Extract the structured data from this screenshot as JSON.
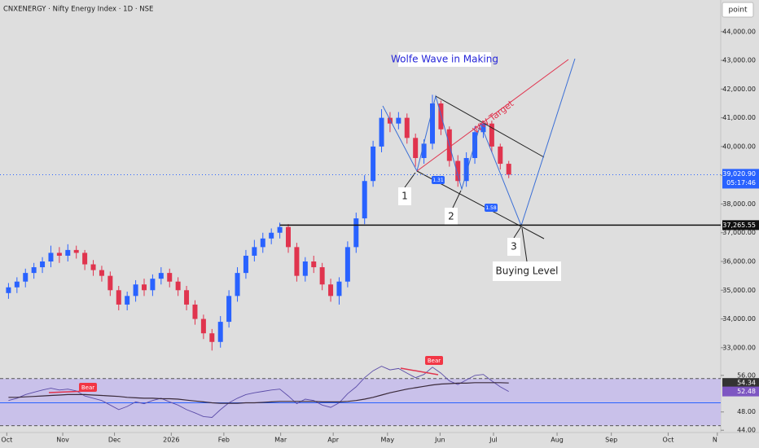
{
  "chart_data": {
    "type": "candlestick",
    "title": "CNXENERGY · Nifty Energy Index · 1D · NSE",
    "unit_label": "point",
    "up_color": "#2962ff",
    "down_color": "#e0344e",
    "open": [
      34900,
      35100,
      35300,
      35600,
      35800,
      36000,
      36300,
      36200,
      36400,
      36300,
      35900,
      35700,
      35500,
      35000,
      34500,
      34800,
      35200,
      35000,
      35400,
      35600,
      35300,
      35000,
      34500,
      34000,
      33500,
      33200,
      33900,
      34800,
      35600,
      36200,
      36500,
      36800,
      37000,
      37200,
      36500,
      35500,
      36000,
      35800,
      35200,
      34800,
      35300,
      36500,
      37500,
      38800,
      40000,
      41000,
      40800,
      41000,
      40300,
      39600,
      40100,
      41500,
      40600,
      39500,
      38800,
      39600,
      40500,
      40800,
      40000,
      39400
    ],
    "high": [
      35250,
      35450,
      35750,
      35950,
      36150,
      36550,
      36500,
      36600,
      36550,
      36400,
      36050,
      35850,
      35650,
      35150,
      34950,
      35350,
      35400,
      35550,
      35800,
      35750,
      35450,
      35150,
      34650,
      34150,
      33650,
      34100,
      35000,
      35800,
      36400,
      36750,
      37000,
      37150,
      37350,
      37300,
      36650,
      36150,
      36200,
      35950,
      35400,
      35450,
      36700,
      37700,
      39000,
      40200,
      41300,
      41200,
      41200,
      41150,
      40450,
      40250,
      41800,
      41600,
      40700,
      39700,
      39800,
      40700,
      40900,
      40900,
      40100,
      39500
    ],
    "low": [
      34700,
      34900,
      35100,
      35400,
      35600,
      35800,
      35950,
      36000,
      36100,
      35700,
      35500,
      35300,
      34800,
      34300,
      34300,
      34600,
      34800,
      34800,
      35200,
      35100,
      34800,
      34300,
      33800,
      33300,
      32900,
      33000,
      33700,
      34600,
      35400,
      36000,
      36300,
      36600,
      36800,
      36300,
      35300,
      35300,
      35600,
      35000,
      34600,
      34500,
      35100,
      36300,
      37300,
      38600,
      39800,
      40500,
      40600,
      40100,
      39300,
      39400,
      39900,
      40400,
      39300,
      38600,
      38600,
      39400,
      40300,
      39800,
      39200,
      38900
    ],
    "close": [
      35100,
      35300,
      35600,
      35800,
      36000,
      36300,
      36200,
      36400,
      36300,
      35900,
      35700,
      35500,
      35000,
      34500,
      34800,
      35200,
      35000,
      35400,
      35600,
      35300,
      35000,
      34500,
      34000,
      33500,
      33200,
      33900,
      34800,
      35600,
      36200,
      36500,
      36800,
      37000,
      37200,
      36500,
      35500,
      36000,
      35800,
      35200,
      34800,
      35300,
      36500,
      37500,
      38800,
      40000,
      41000,
      40800,
      41000,
      40300,
      39600,
      40100,
      41500,
      40600,
      39500,
      38800,
      39600,
      40500,
      40800,
      40000,
      39400,
      39020.9
    ],
    "ylim": [
      32400,
      45100
    ],
    "yticks": [
      {
        "value": 33000,
        "label": "33,000.00"
      },
      {
        "value": 34000,
        "label": "34,000.00"
      },
      {
        "value": 35000,
        "label": "35,000.00"
      },
      {
        "value": 36000,
        "label": "36,000.00"
      },
      {
        "value": 37000,
        "label": "37,000.00"
      },
      {
        "value": 38000,
        "label": "38,000.00"
      },
      {
        "value": 39000,
        "label": "39,000.00"
      },
      {
        "value": 40000,
        "label": "40,000.00"
      },
      {
        "value": 41000,
        "label": "41,000.00"
      },
      {
        "value": 42000,
        "label": "42,000.00"
      },
      {
        "value": 43000,
        "label": "43,000.00"
      },
      {
        "value": 44000,
        "label": "44,000.00"
      }
    ],
    "xlim": [
      -1,
      84
    ],
    "xticks": [
      {
        "value": -0.2,
        "label": "Oct"
      },
      {
        "value": 6.4,
        "label": "Nov"
      },
      {
        "value": 12.5,
        "label": "Dec"
      },
      {
        "value": 19.2,
        "label": "2026"
      },
      {
        "value": 25.4,
        "label": "Feb"
      },
      {
        "value": 32.1,
        "label": "Mar"
      },
      {
        "value": 38.3,
        "label": "Apr"
      },
      {
        "value": 44.7,
        "label": "May"
      },
      {
        "value": 50.9,
        "label": "Jun"
      },
      {
        "value": 57.2,
        "label": "Jul"
      },
      {
        "value": 64.7,
        "label": "Aug"
      },
      {
        "value": 71.1,
        "label": "Sep"
      },
      {
        "value": 77.8,
        "label": "Oct"
      },
      {
        "value": 83.6,
        "label": "N"
      }
    ],
    "last_price": {
      "value": 39020.9,
      "label": "39,020.90"
    },
    "countdown": "05:17:46",
    "level": {
      "value": 37265.55,
      "label": "37,265.55"
    },
    "annotations": {
      "pattern": "Wolfe Wave in Making",
      "target": "WW Target",
      "point1": "1",
      "point2": "2",
      "point3": "3",
      "buy": "Buying Level",
      "ratio1": "1.31",
      "ratio2": "1.58"
    },
    "rsi": {
      "values": [
        50.5,
        51,
        51.8,
        52.3,
        52.8,
        53.2,
        52.8,
        53,
        52.6,
        51.5,
        51,
        50.5,
        49.5,
        48.5,
        49.2,
        50.2,
        49.8,
        50.5,
        51,
        50.2,
        49.5,
        48.5,
        47.8,
        47,
        46.8,
        48.5,
        50,
        51,
        51.8,
        52.2,
        52.5,
        52.8,
        53,
        51.5,
        49.8,
        50.8,
        50.5,
        49.5,
        49,
        50,
        52,
        53.5,
        55.5,
        57,
        58,
        57.2,
        57.5,
        56.5,
        55.5,
        56.2,
        57.8,
        56.5,
        54.8,
        54,
        55,
        56,
        56.2,
        54.8,
        53.5,
        52.48
      ],
      "ma": [
        51.2,
        51.2,
        51.3,
        51.4,
        51.5,
        51.6,
        51.7,
        51.8,
        51.8,
        51.8,
        51.7,
        51.6,
        51.5,
        51.4,
        51.2,
        51.1,
        51,
        51,
        50.9,
        50.9,
        50.8,
        50.6,
        50.4,
        50.2,
        50,
        49.9,
        49.9,
        49.9,
        50,
        50,
        50.1,
        50.2,
        50.3,
        50.3,
        50.3,
        50.3,
        50.3,
        50.2,
        50.2,
        50.2,
        50.3,
        50.5,
        50.8,
        51.2,
        51.7,
        52.2,
        52.6,
        53,
        53.3,
        53.6,
        53.9,
        54.1,
        54.2,
        54.3,
        54.3,
        54.4,
        54.4,
        54.4,
        54.4,
        54.34
      ],
      "color": "#5b4ca8",
      "ma_color": "#3a2a3a",
      "ylim": [
        43.5,
        57.4
      ],
      "yticks": [
        {
          "value": 56,
          "label": "56.00"
        },
        {
          "value": 48,
          "label": "48.00"
        },
        {
          "value": 44,
          "label": "44.00"
        }
      ],
      "midline": 50,
      "band": [
        45,
        55.3
      ],
      "last": {
        "value": 52.48,
        "label": "52.48"
      },
      "ma_last": {
        "value": 54.34,
        "label": "54.34"
      },
      "signals": [
        "Bear",
        "Bear"
      ]
    }
  }
}
